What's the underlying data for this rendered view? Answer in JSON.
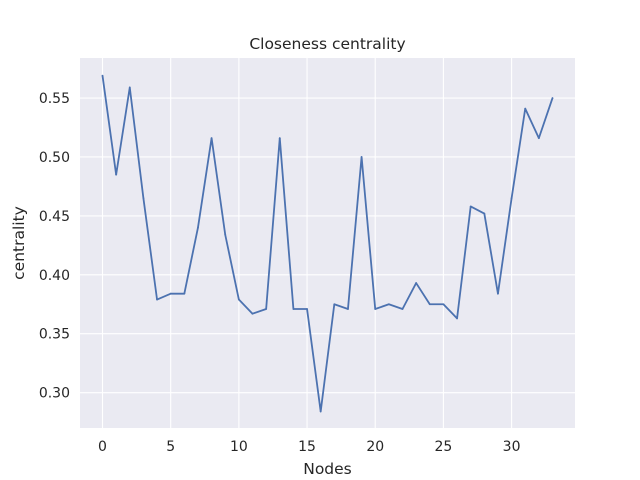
{
  "chart_data": {
    "type": "line",
    "title": "Closeness centrality",
    "xlabel": "Nodes",
    "ylabel": "centrality",
    "xlim": [
      -1.65,
      34.65
    ],
    "ylim": [
      0.27,
      0.584
    ],
    "xticks": [
      0,
      5,
      10,
      15,
      20,
      25,
      30
    ],
    "yticks": [
      0.3,
      0.35,
      0.4,
      0.45,
      0.5,
      0.55
    ],
    "xtick_labels": [
      "0",
      "5",
      "10",
      "15",
      "20",
      "25",
      "30"
    ],
    "ytick_labels": [
      "0.30",
      "0.35",
      "0.40",
      "0.45",
      "0.50",
      "0.55"
    ],
    "grid": true,
    "background": "#eaeaf2",
    "grid_color": "#ffffff",
    "series": [
      {
        "color": "#4c72b0",
        "x": [
          0,
          1,
          2,
          3,
          4,
          5,
          6,
          7,
          8,
          9,
          10,
          11,
          12,
          13,
          14,
          15,
          16,
          17,
          18,
          19,
          20,
          21,
          22,
          23,
          24,
          25,
          26,
          27,
          28,
          29,
          30,
          31,
          32,
          33
        ],
        "values": [
          0.569,
          0.485,
          0.559,
          0.465,
          0.379,
          0.384,
          0.384,
          0.44,
          0.516,
          0.434,
          0.379,
          0.367,
          0.371,
          0.516,
          0.371,
          0.371,
          0.284,
          0.375,
          0.371,
          0.5,
          0.371,
          0.375,
          0.371,
          0.393,
          0.375,
          0.375,
          0.363,
          0.458,
          0.452,
          0.384,
          0.465,
          0.541,
          0.516,
          0.55
        ]
      }
    ]
  }
}
